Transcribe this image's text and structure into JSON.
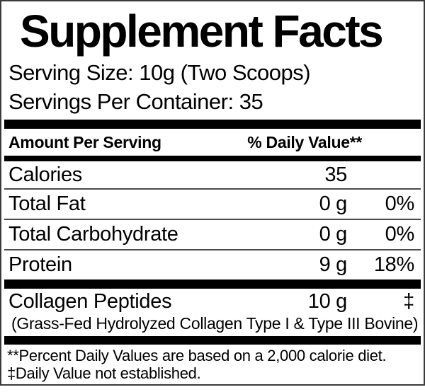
{
  "label": {
    "title": "Supplement Facts",
    "serving_size": "Serving Size: 10g (Two Scoops)",
    "servings_per_container": "Servings Per Container: 35",
    "columns": {
      "amount_header": "Amount Per Serving",
      "daily_value_header": "% Daily Value**"
    },
    "rows": [
      {
        "name": "Calories",
        "amount": "35",
        "dv": ""
      },
      {
        "name": "Total Fat",
        "amount": "0 g",
        "dv": "0%"
      },
      {
        "name": "Total Carbohydrate",
        "amount": "0 g",
        "dv": "0%"
      },
      {
        "name": "Protein",
        "amount": "9 g",
        "dv": "18%"
      }
    ],
    "ingredient": {
      "name": "Collagen Peptides",
      "amount": "10 g",
      "dv": "‡",
      "description": "(Grass-Fed Hydrolyzed Collagen Type I & Type III Bovine)"
    },
    "footnotes": [
      "**Percent Daily Values are based on a 2,000 calorie diet.",
      "‡Daily Value not established."
    ],
    "colors": {
      "text": "#000000",
      "bar": "#000000",
      "divider": "#4a4a4a",
      "border": "#3a3a3a",
      "background": "#ffffff"
    }
  }
}
